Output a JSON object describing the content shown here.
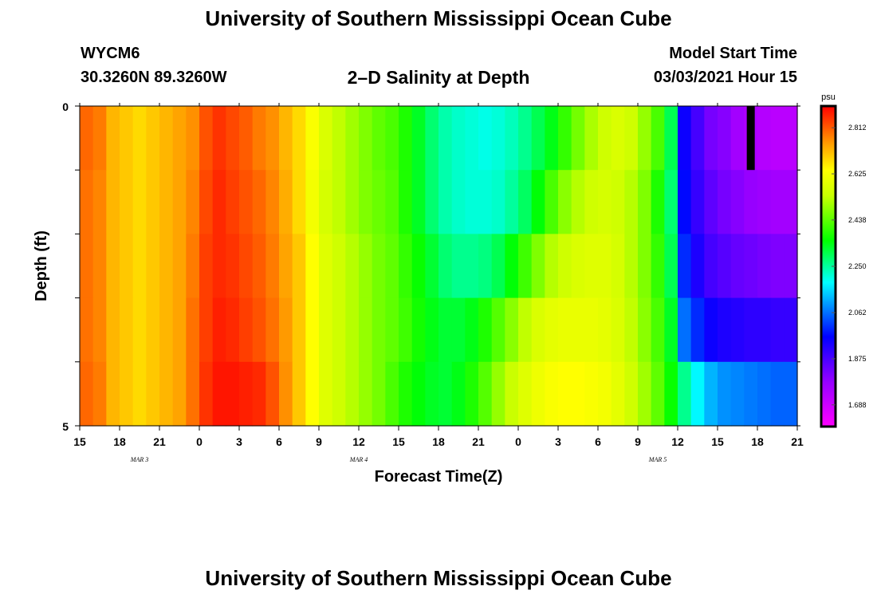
{
  "header": {
    "title": "University of Southern Mississippi Ocean Cube",
    "station": "WYCM6",
    "coords": "30.3260N 89.3260W",
    "subtitle": "2–D Salinity at Depth",
    "model_label": "Model Start Time",
    "model_time": "03/03/2021 Hour 15"
  },
  "footer": {
    "title": "University of Southern Mississippi Ocean Cube"
  },
  "chart_data": {
    "type": "heatmap",
    "title": "2–D Salinity at Depth",
    "xlabel": "Forecast Time(Z)",
    "ylabel": "Depth (ft)",
    "x_ticks": [
      "15",
      "18",
      "21",
      "0",
      "3",
      "6",
      "9",
      "12",
      "15",
      "18",
      "21",
      "0",
      "3",
      "6",
      "9",
      "12",
      "15",
      "18",
      "21"
    ],
    "date_labels": [
      {
        "label": "MAR 3",
        "hour_index": 4.5
      },
      {
        "label": "MAR 4",
        "hour_index": 21
      },
      {
        "label": "MAR 5",
        "hour_index": 43.5
      }
    ],
    "x_range_hours": [
      0,
      54
    ],
    "y_ticks": [
      "0",
      "5"
    ],
    "ylim": [
      0,
      5
    ],
    "units": "psu",
    "colorbar_ticks": [
      "2.812",
      "2.625",
      "2.438",
      "2.250",
      "2.062",
      "1.875",
      "1.688"
    ],
    "colorbar_range": [
      1.6,
      2.9
    ],
    "layer_count": 5,
    "hour_count": 54,
    "values_note": "Approximate salinity (psu) per hourly column for each 1-ft depth layer (top to bottom).",
    "values": [
      [
        2.8,
        2.78,
        2.72,
        2.7,
        2.68,
        2.7,
        2.72,
        2.74,
        2.76,
        2.82,
        2.85,
        2.83,
        2.81,
        2.78,
        2.76,
        2.72,
        2.68,
        2.63,
        2.57,
        2.53,
        2.5,
        2.47,
        2.44,
        2.42,
        2.38,
        2.33,
        2.28,
        2.24,
        2.22,
        2.21,
        2.2,
        2.21,
        2.23,
        2.26,
        2.3,
        2.34,
        2.4,
        2.46,
        2.51,
        2.55,
        2.57,
        2.55,
        2.49,
        2.42,
        2.3,
        1.95,
        1.88,
        1.82,
        1.8,
        1.76,
        1.74,
        1.73,
        1.72,
        1.72
      ],
      [
        2.79,
        2.77,
        2.72,
        2.7,
        2.68,
        2.7,
        2.72,
        2.74,
        2.77,
        2.83,
        2.86,
        2.84,
        2.82,
        2.8,
        2.77,
        2.73,
        2.68,
        2.62,
        2.56,
        2.53,
        2.5,
        2.47,
        2.45,
        2.43,
        2.38,
        2.33,
        2.28,
        2.24,
        2.22,
        2.21,
        2.21,
        2.22,
        2.25,
        2.29,
        2.35,
        2.42,
        2.48,
        2.52,
        2.55,
        2.56,
        2.55,
        2.52,
        2.47,
        2.38,
        2.28,
        1.97,
        1.9,
        1.85,
        1.82,
        1.8,
        1.78,
        1.77,
        1.76,
        1.76
      ],
      [
        2.79,
        2.77,
        2.72,
        2.7,
        2.68,
        2.7,
        2.72,
        2.74,
        2.78,
        2.84,
        2.86,
        2.85,
        2.83,
        2.81,
        2.78,
        2.74,
        2.7,
        2.64,
        2.58,
        2.55,
        2.52,
        2.49,
        2.46,
        2.44,
        2.4,
        2.36,
        2.32,
        2.28,
        2.26,
        2.26,
        2.27,
        2.3,
        2.35,
        2.41,
        2.47,
        2.52,
        2.55,
        2.57,
        2.58,
        2.58,
        2.56,
        2.52,
        2.47,
        2.4,
        2.3,
        2.0,
        1.93,
        1.88,
        1.86,
        1.84,
        1.83,
        1.82,
        1.81,
        1.81
      ],
      [
        2.79,
        2.77,
        2.72,
        2.7,
        2.68,
        2.7,
        2.72,
        2.74,
        2.79,
        2.84,
        2.87,
        2.86,
        2.84,
        2.82,
        2.79,
        2.75,
        2.7,
        2.64,
        2.58,
        2.55,
        2.52,
        2.49,
        2.46,
        2.44,
        2.41,
        2.37,
        2.34,
        2.32,
        2.32,
        2.34,
        2.38,
        2.43,
        2.48,
        2.53,
        2.57,
        2.59,
        2.6,
        2.6,
        2.6,
        2.59,
        2.57,
        2.53,
        2.48,
        2.42,
        2.33,
        2.06,
        2.0,
        1.95,
        1.93,
        1.92,
        1.91,
        1.91,
        1.9,
        1.9
      ],
      [
        2.8,
        2.78,
        2.72,
        2.7,
        2.68,
        2.7,
        2.72,
        2.74,
        2.79,
        2.85,
        2.88,
        2.88,
        2.87,
        2.86,
        2.82,
        2.76,
        2.7,
        2.64,
        2.58,
        2.55,
        2.52,
        2.49,
        2.46,
        2.42,
        2.38,
        2.35,
        2.33,
        2.32,
        2.34,
        2.38,
        2.43,
        2.49,
        2.54,
        2.58,
        2.61,
        2.63,
        2.64,
        2.64,
        2.63,
        2.62,
        2.59,
        2.55,
        2.5,
        2.44,
        2.36,
        2.26,
        2.18,
        2.12,
        2.09,
        2.08,
        2.07,
        2.06,
        2.05,
        2.05
      ]
    ],
    "missing_cells": [
      {
        "layer": 0,
        "hour": 50
      }
    ]
  }
}
